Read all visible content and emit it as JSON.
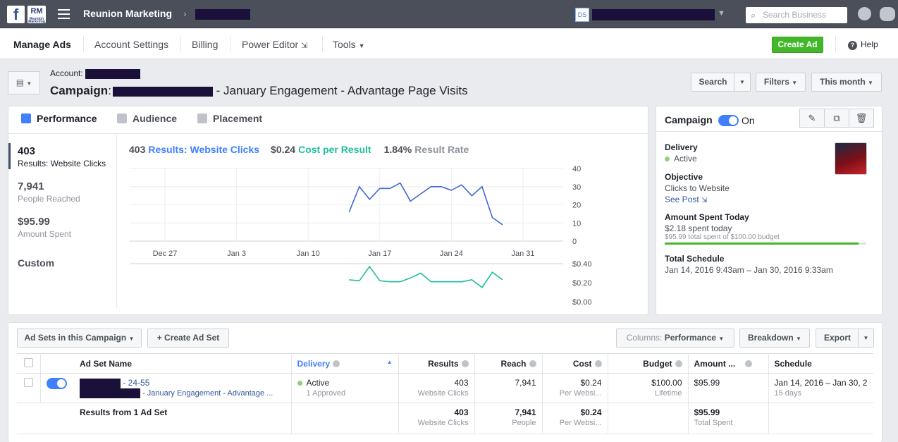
{
  "topbar": {
    "fb_logo": "f",
    "brand_logo_text": "RM",
    "brand_logo_sub": "Reunion Marketing",
    "business_name": "Reunion Marketing",
    "account_badge": "DS",
    "search_placeholder": "Search Business"
  },
  "nav": {
    "items": [
      "Manage Ads",
      "Account Settings",
      "Billing",
      "Power Editor",
      "Tools"
    ],
    "create_ad": "Create Ad",
    "help": "Help"
  },
  "header": {
    "account_label": "Account:",
    "campaign_label": "Campaign",
    "campaign_name_suffix": "- January Engagement - Advantage Page Visits",
    "search_btn": "Search",
    "filters_btn": "Filters",
    "date_btn": "This month"
  },
  "performance": {
    "tabs": [
      "Performance",
      "Audience",
      "Placement"
    ],
    "stats": [
      {
        "value": "403",
        "label": "Results: Website Clicks"
      },
      {
        "value": "7,941",
        "label": "People Reached"
      },
      {
        "value": "$95.99",
        "label": "Amount Spent"
      }
    ],
    "custom_label": "Custom",
    "legend": {
      "results_value": "403",
      "results_label": "Results: Website Clicks",
      "cost_value": "$0.24",
      "cost_label": "Cost per Result",
      "rate_value": "1.84%",
      "rate_label": "Result Rate"
    },
    "colors": {
      "results": "#4267d6",
      "cost": "#1fbe9c"
    }
  },
  "chart_data": [
    {
      "type": "line",
      "series": [
        {
          "name": "Results: Website Clicks",
          "values": [
            16,
            30,
            23,
            29,
            29,
            32,
            22,
            26,
            30,
            30,
            28,
            31,
            25,
            30,
            13,
            9
          ]
        }
      ],
      "x": [
        "Jan 14",
        "Jan 15",
        "Jan 16",
        "Jan 17",
        "Jan 18",
        "Jan 19",
        "Jan 20",
        "Jan 21",
        "Jan 22",
        "Jan 23",
        "Jan 24",
        "Jan 25",
        "Jan 26",
        "Jan 27",
        "Jan 28",
        "Jan 29"
      ],
      "x_ticks": [
        "Dec 27",
        "Jan 3",
        "Jan 10",
        "Jan 17",
        "Jan 24",
        "Jan 31"
      ],
      "y_ticks": [
        "40",
        "30",
        "20",
        "10",
        "0"
      ],
      "ylim": [
        0,
        40
      ]
    },
    {
      "type": "line",
      "series": [
        {
          "name": "Cost per Result",
          "values": [
            0.23,
            0.22,
            0.37,
            0.22,
            0.21,
            0.21,
            0.25,
            0.3,
            0.21,
            0.21,
            0.21,
            0.21,
            0.23,
            0.15,
            0.31,
            0.23
          ]
        }
      ],
      "x": [
        "Jan 14",
        "Jan 15",
        "Jan 16",
        "Jan 17",
        "Jan 18",
        "Jan 19",
        "Jan 20",
        "Jan 21",
        "Jan 22",
        "Jan 23",
        "Jan 24",
        "Jan 25",
        "Jan 26",
        "Jan 27",
        "Jan 28",
        "Jan 29"
      ],
      "y_ticks": [
        "$0.40",
        "$0.20",
        "$0.00"
      ],
      "ylim": [
        0,
        0.4
      ]
    }
  ],
  "campaign_panel": {
    "title": "Campaign",
    "status": "On",
    "delivery_label": "Delivery",
    "delivery_value": "Active",
    "objective_label": "Objective",
    "objective_value": "Clicks to Website",
    "see_post": "See Post",
    "spent_today_label": "Amount Spent Today",
    "spent_today_value": "$2.18 spent today",
    "spent_total_note": "$95.99 total spent of $100.00 budget",
    "budget_progress": 0.96,
    "schedule_label": "Total Schedule",
    "schedule_value": "Jan 14, 2016 9:43am – Jan 30, 2016 9:33am"
  },
  "table": {
    "adsets_btn": "Ad Sets in this Campaign",
    "create_btn": "+ Create Ad Set",
    "columns_btn_label": "Columns:",
    "columns_btn_value": "Performance",
    "breakdown_btn": "Breakdown",
    "export_btn": "Export",
    "headers": [
      "Ad Set Name",
      "Delivery",
      "Results",
      "Reach",
      "Cost",
      "Budget",
      "Amount ...",
      "Schedule"
    ],
    "row": {
      "name_suffix": "- 24-55",
      "name_line2": "- January Engagement - Advantage ...",
      "delivery": "Active",
      "delivery_sub": "1 Approved",
      "results": "403",
      "results_sub": "Website Clicks",
      "reach": "7,941",
      "cost": "$0.24",
      "cost_sub": "Per Websi...",
      "budget": "$100.00",
      "budget_sub": "Lifetime",
      "amount": "$95.99",
      "schedule": "Jan 14, 2016 – Jan 30, 2",
      "schedule_sub": "15 days"
    },
    "summary": {
      "label": "Results from 1 Ad Set",
      "results": "403",
      "results_sub": "Website Clicks",
      "reach": "7,941",
      "reach_sub": "People",
      "cost": "$0.24",
      "cost_sub": "Per Websi...",
      "amount": "$95.99",
      "amount_sub": "Total Spent"
    }
  }
}
